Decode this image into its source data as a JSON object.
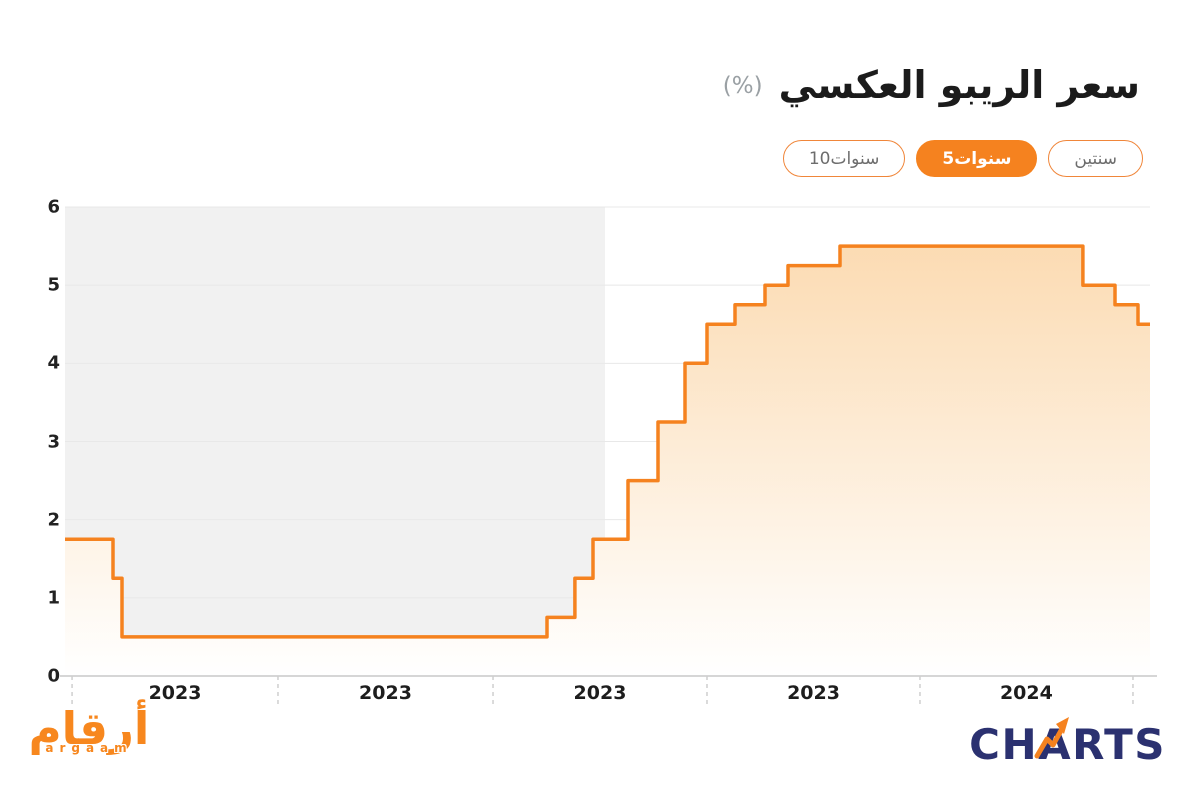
{
  "header": {
    "title": "سعر الريبو العكسي",
    "unit_label": "(%)",
    "period_buttons": [
      {
        "id": "2-years",
        "label": "سنتين",
        "selected": false
      },
      {
        "id": "5-years",
        "label": "5سنوات",
        "selected": true
      },
      {
        "id": "10-years",
        "label": "10سنوات",
        "selected": false
      }
    ]
  },
  "chart_data": {
    "type": "area",
    "subtype": "step-line",
    "title": "سعر الريبو العكسي (%)",
    "ylabel": "%",
    "ylim": [
      0,
      6
    ],
    "y_ticks": [
      6,
      5,
      4,
      3,
      2,
      1,
      0
    ],
    "x_tick_labels": [
      "2023",
      "2023",
      "2023",
      "2023",
      "2024"
    ],
    "x_label_positions": [
      0.1014,
      0.2954,
      0.4931,
      0.6899,
      0.8861
    ],
    "x_tick_positions": [
      0.0065,
      0.1963,
      0.3945,
      0.5917,
      0.788,
      0.9843
    ],
    "grid": "horizontal",
    "legend": "none",
    "series": [
      {
        "name": "سعر الريبو العكسي",
        "color": "#f5821f",
        "steps": [
          {
            "x": 0.0,
            "value": 1.75
          },
          {
            "x": 0.0442,
            "value": 1.25
          },
          {
            "x": 0.0525,
            "value": 0.5
          },
          {
            "x": 0.4442,
            "value": 0.75
          },
          {
            "x": 0.47,
            "value": 1.25
          },
          {
            "x": 0.4866,
            "value": 1.75
          },
          {
            "x": 0.5189,
            "value": 2.5
          },
          {
            "x": 0.5465,
            "value": 3.25
          },
          {
            "x": 0.5714,
            "value": 4.0
          },
          {
            "x": 0.5917,
            "value": 4.5
          },
          {
            "x": 0.6175,
            "value": 4.75
          },
          {
            "x": 0.6452,
            "value": 5.0
          },
          {
            "x": 0.6664,
            "value": 5.25
          },
          {
            "x": 0.7143,
            "value": 5.5
          },
          {
            "x": 0.9382,
            "value": 5.0
          },
          {
            "x": 0.9677,
            "value": 4.75
          },
          {
            "x": 0.9889,
            "value": 4.5
          }
        ]
      }
    ],
    "highlight_region": {
      "x_start": 0.0,
      "x_end": 0.4977,
      "color": "#f1f1f1"
    },
    "area_gradient": {
      "top": "#fbd8ac",
      "bottom": "#ffffff"
    },
    "grid_color": "#e8e8e8",
    "axis_color": "#c9c9c9",
    "tick_color": "#cfcfcf"
  },
  "footer": {
    "argaam_logo_arabic": "أرقام",
    "argaam_logo_latin": "argaam",
    "charts_logo_ch": "CH",
    "charts_logo_a": "A",
    "charts_logo_rts": "RTS"
  },
  "colors": {
    "accent_orange": "#f5821f",
    "logo_orange": "#f7871e",
    "navy": "#2b3170",
    "title_text": "#1b1b1b",
    "muted_text": "#6d6d6d"
  }
}
